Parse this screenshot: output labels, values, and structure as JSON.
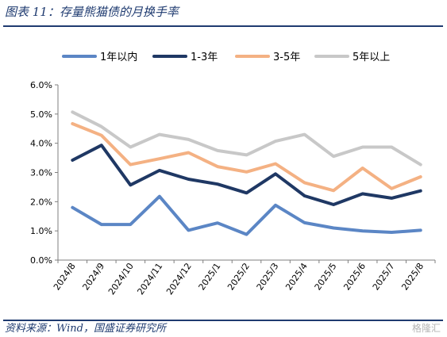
{
  "figure": {
    "title": "图表 11：存量熊猫债的月换手率",
    "source": "资料来源：Wind，国盛证券研究所",
    "watermark": "格隆汇"
  },
  "chart_data": {
    "type": "line",
    "title": "",
    "xlabel": "",
    "ylabel": "",
    "categories": [
      "2024/8",
      "2024/9",
      "2024/10",
      "2024/11",
      "2024/12",
      "2025/1",
      "2025/2",
      "2025/3",
      "2025/4",
      "2025/5",
      "2025/6",
      "2025/7",
      "2025/8"
    ],
    "ylim": [
      0,
      6
    ],
    "yticks": [
      "0.0%",
      "1.0%",
      "2.0%",
      "3.0%",
      "4.0%",
      "5.0%",
      "6.0%"
    ],
    "y_unit": "%",
    "grid": false,
    "legend_position": "top",
    "series": [
      {
        "name": "1年以内",
        "color": "#5b86c5",
        "values": [
          1.8,
          1.22,
          1.22,
          2.18,
          1.02,
          1.27,
          0.88,
          1.88,
          1.28,
          1.1,
          1.0,
          0.95,
          1.02
        ]
      },
      {
        "name": "1-3年",
        "color": "#1f3864",
        "values": [
          3.42,
          3.93,
          2.57,
          3.07,
          2.77,
          2.6,
          2.3,
          2.95,
          2.2,
          1.9,
          2.27,
          2.12,
          2.37
        ]
      },
      {
        "name": "3-5年",
        "color": "#f4b183",
        "values": [
          4.67,
          4.27,
          3.27,
          3.47,
          3.68,
          3.2,
          3.02,
          3.3,
          2.65,
          2.38,
          3.15,
          2.45,
          2.85
        ]
      },
      {
        "name": "5年以上",
        "color": "#c8c8c8",
        "values": [
          5.07,
          4.57,
          3.87,
          4.3,
          4.13,
          3.75,
          3.6,
          4.07,
          4.3,
          3.55,
          3.87,
          3.87,
          3.27
        ]
      }
    ]
  }
}
